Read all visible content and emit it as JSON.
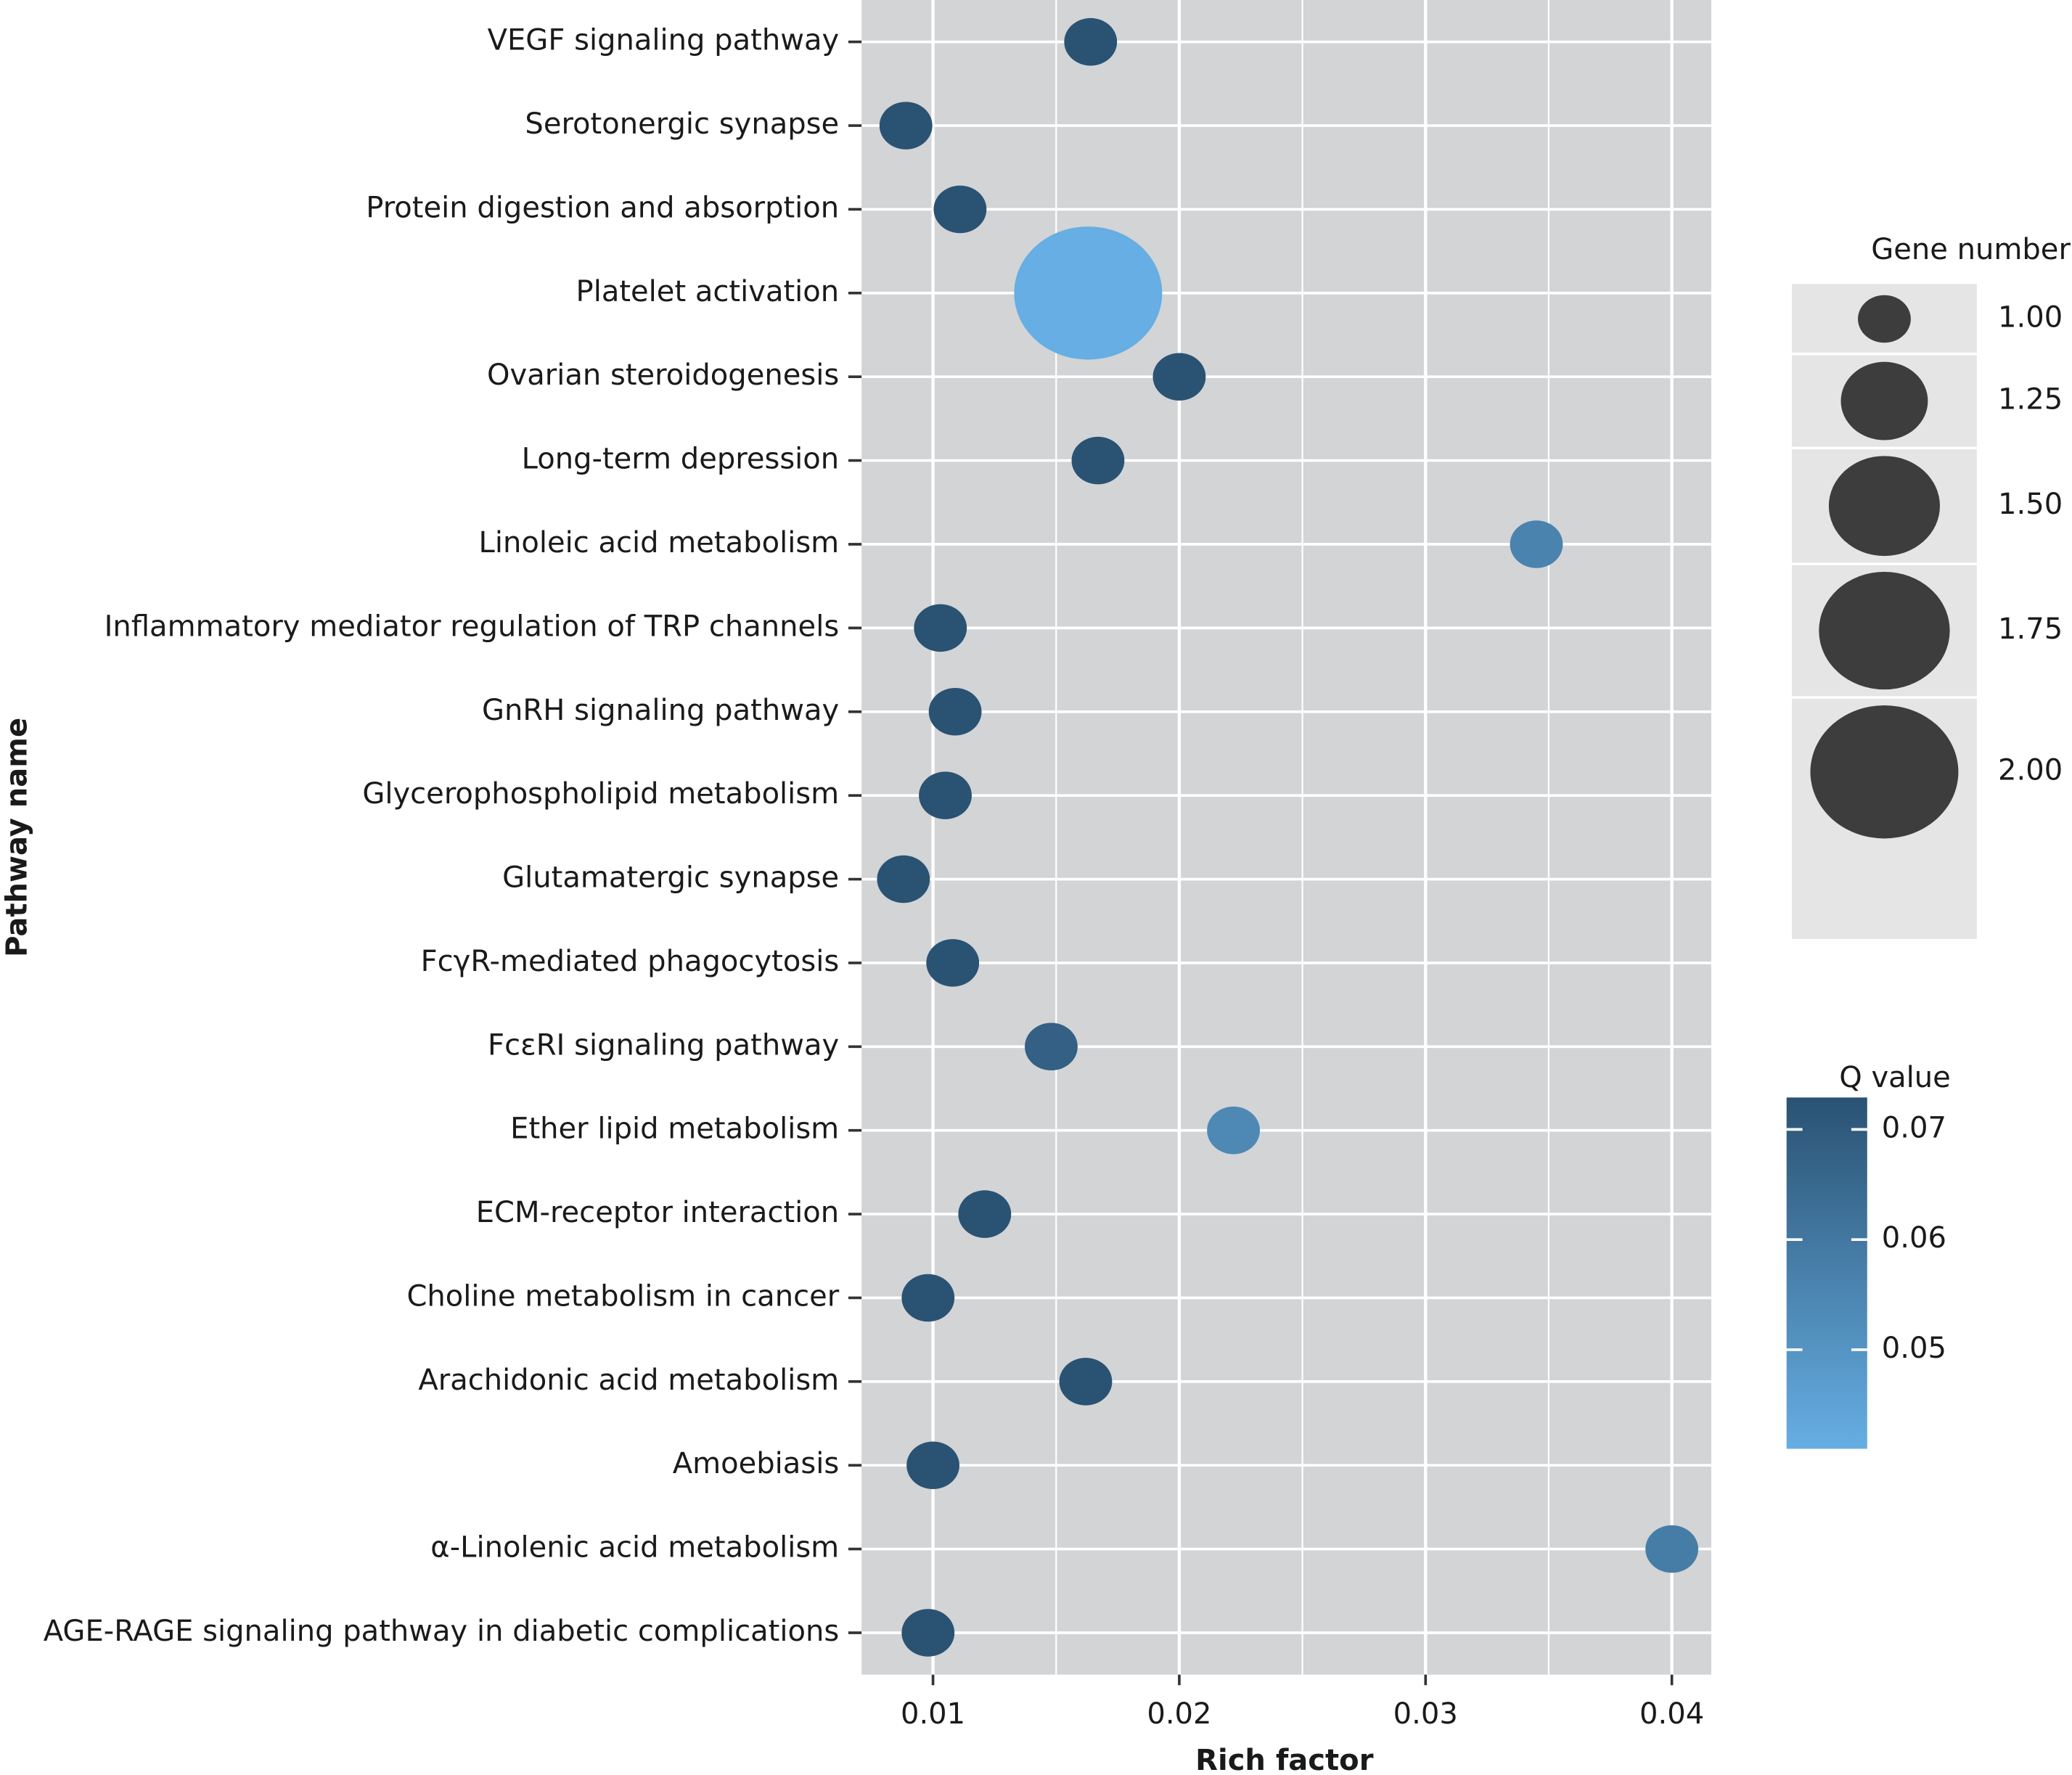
{
  "chart_data": {
    "type": "bubble",
    "x_label": "Rich factor",
    "y_label": "Pathway name",
    "categories": [
      "VEGF signaling pathway",
      "Serotonergic synapse",
      "Protein digestion and absorption",
      "Platelet activation",
      "Ovarian steroidogenesis",
      "Long-term depression",
      "Linoleic acid metabolism",
      "Inflammatory mediator regulation of TRP channels",
      "GnRH signaling pathway",
      "Glycerophospholipid metabolism",
      "Glutamatergic synapse",
      "FcγR-mediated phagocytosis",
      "FcεRI signaling pathway",
      "Ether lipid metabolism",
      "ECM-receptor interaction",
      "Choline metabolism in cancer",
      "Arachidonic acid metabolism",
      "Amoebiasis",
      "α-Linolenic acid metabolism",
      "AGE-RAGE signaling pathway in diabetic complications"
    ],
    "x": [
      0.0164,
      0.0089,
      0.0111,
      0.0163,
      0.02,
      0.0167,
      0.0345,
      0.0103,
      0.0109,
      0.0105,
      0.0088,
      0.0108,
      0.0148,
      0.0222,
      0.0121,
      0.0098,
      0.0162,
      0.01,
      0.04,
      0.0098
    ],
    "size": [
      1,
      1,
      1,
      2,
      1,
      1,
      1,
      1,
      1,
      1,
      1,
      1,
      1,
      1,
      1,
      1,
      1,
      1,
      1,
      1
    ],
    "color_values": [
      0.0729,
      0.0729,
      0.0729,
      0.041,
      0.0729,
      0.0729,
      0.056,
      0.0729,
      0.0729,
      0.0729,
      0.0729,
      0.0729,
      0.068,
      0.054,
      0.0729,
      0.0729,
      0.0729,
      0.0729,
      0.058,
      0.0729
    ],
    "xlim": [
      0.0071,
      0.0416
    ],
    "xticks": [
      0.01,
      0.02,
      0.03,
      0.04
    ],
    "grid": true,
    "size_title": "Gene number",
    "size_ticks": [
      {
        "value": 1,
        "label": "1.00"
      },
      {
        "value": 1.25,
        "label": "1.25"
      },
      {
        "value": 1.5,
        "label": "1.50"
      },
      {
        "value": 1.75,
        "label": "1.75"
      },
      {
        "value": 2,
        "label": "2.00"
      }
    ],
    "color_title": "Q value",
    "clim": [
      0.041,
      0.0729
    ],
    "cticks": [
      0.05,
      0.06,
      0.07
    ],
    "color_low": "#66aee3",
    "color_high": "#2a5273",
    "size_key_color": "#3d3d3d"
  }
}
